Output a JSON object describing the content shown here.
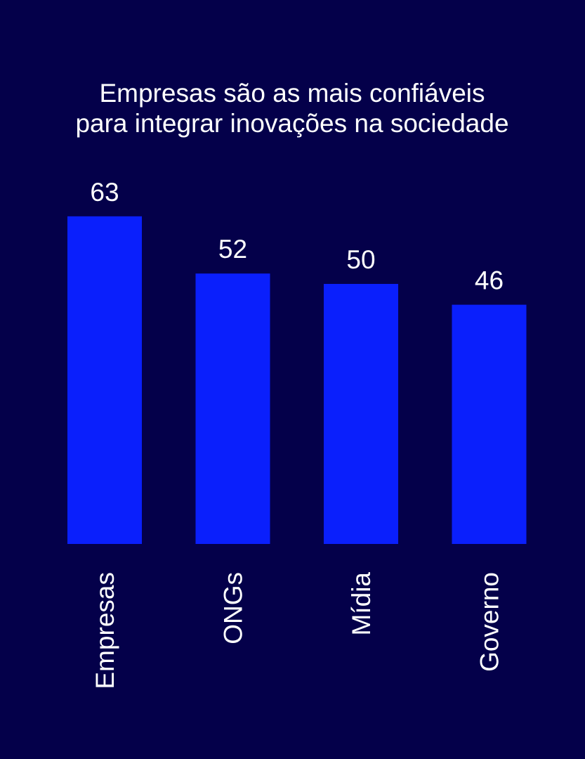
{
  "colors": {
    "background": "#04004a",
    "bar": "#0a1ffc",
    "text": "#ffffff"
  },
  "chart_data": {
    "type": "bar",
    "title_lines": [
      "Empresas são as mais confiáveis",
      "para integrar inovações na sociedade"
    ],
    "categories": [
      "Empresas",
      "ONGs",
      "Mídia",
      "Governo"
    ],
    "values": [
      63,
      52,
      50,
      46
    ],
    "data_labels": [
      "63",
      "52",
      "50",
      "46"
    ],
    "xlabel": "",
    "ylabel": "",
    "grid": false,
    "legend": "none"
  }
}
